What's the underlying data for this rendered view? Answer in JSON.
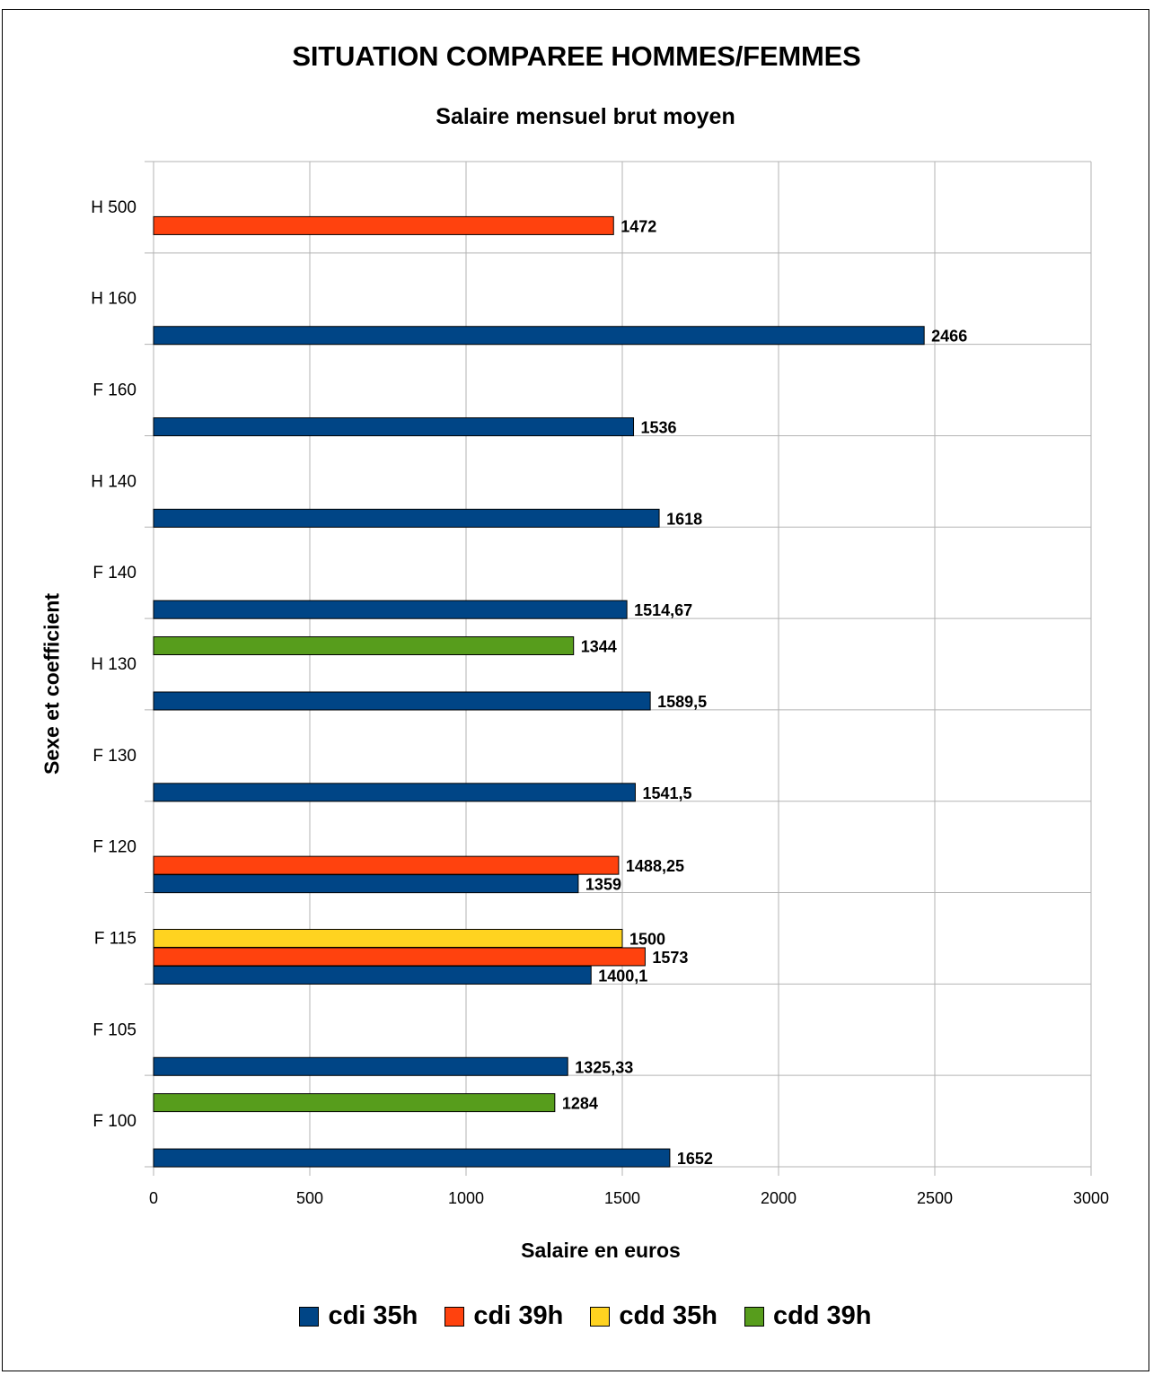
{
  "chart_data": {
    "type": "bar",
    "orientation": "horizontal",
    "title": "SITUATION COMPAREE HOMMES/FEMMES",
    "subtitle": "Salaire mensuel brut moyen",
    "xlabel": "Salaire en euros",
    "ylabel": "Sexe et coefficient",
    "xlim": [
      0,
      3000
    ],
    "xticks": [
      "0",
      "500",
      "1000",
      "1500",
      "2000",
      "2500",
      "3000"
    ],
    "grid": true,
    "legend_position": "bottom",
    "categories": [
      "H 500",
      "H 160",
      "F 160",
      "H 140",
      "F 140",
      "H 130",
      "F 130",
      "F 120",
      "F 115",
      "F 105",
      "F 100"
    ],
    "series": [
      {
        "name": "cdi 35h",
        "color": "#004586",
        "values": [
          null,
          2466,
          1536,
          1618,
          1514.67,
          1589.5,
          1541.5,
          1359,
          1400.1,
          1325.33,
          1652
        ],
        "labels": [
          null,
          "2466",
          "1536",
          "1618",
          "1514,67",
          "1589,5",
          "1541,5",
          "1359",
          "1400,1",
          "1325,33",
          "1652"
        ]
      },
      {
        "name": "cdi 39h",
        "color": "#ff420e",
        "values": [
          1472,
          null,
          null,
          null,
          null,
          null,
          null,
          1488.25,
          1573,
          null,
          null
        ],
        "labels": [
          "1472",
          null,
          null,
          null,
          null,
          null,
          null,
          "1488,25",
          "1573",
          null,
          null
        ]
      },
      {
        "name": "cdd 35h",
        "color": "#ffd320",
        "values": [
          null,
          null,
          null,
          null,
          null,
          null,
          null,
          null,
          1500,
          null,
          null
        ],
        "labels": [
          null,
          null,
          null,
          null,
          null,
          null,
          null,
          null,
          "1500",
          null,
          null
        ]
      },
      {
        "name": "cdd 39h",
        "color": "#579d1c",
        "values": [
          null,
          null,
          null,
          null,
          null,
          1344,
          null,
          null,
          null,
          null,
          1284
        ],
        "labels": [
          null,
          null,
          null,
          null,
          null,
          "1344",
          null,
          null,
          null,
          null,
          "1284"
        ]
      }
    ]
  }
}
